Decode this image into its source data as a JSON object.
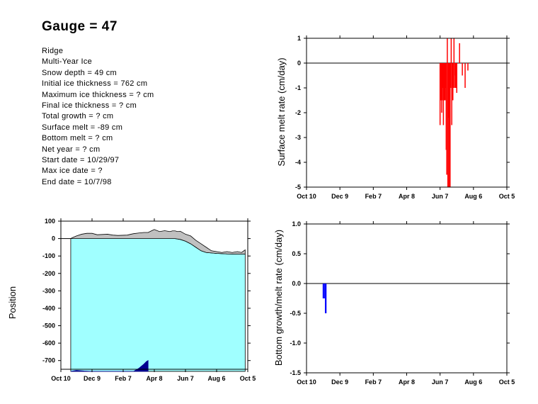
{
  "header": {
    "title": "Gauge = 47",
    "info_lines": [
      "Ridge",
      "Multi-Year Ice",
      "Snow depth = 49 cm",
      "Initial ice thickness = 762 cm",
      "Maximum ice thickness = ? cm",
      "Final ice thickness = ? cm",
      "Total growth = ? cm",
      "Surface melt = -89 cm",
      "Bottom melt = ? cm",
      "Net year = ? cm",
      "Start date = 10/29/97",
      "Max ice date = ?",
      "End date = 10/7/98"
    ]
  },
  "chart_data": [
    {
      "id": "position",
      "type": "area",
      "xlabel": "",
      "ylabel": "Position",
      "x_ticks": [
        "Oct 10",
        "Dec 9",
        "Feb 7",
        "Apr 8",
        "Jun 7",
        "Aug 6",
        "Oct 5"
      ],
      "y_ticks": [
        "100",
        "0",
        "-100",
        "-200",
        "-300",
        "-400",
        "-500",
        "-600",
        "-700"
      ],
      "xlim": [
        0,
        360
      ],
      "ylim": [
        -750,
        100
      ],
      "colors": {
        "snow": "#c0c0c0",
        "ice": "#a0ffff",
        "growth": "#000090"
      },
      "series": [
        {
          "role": "snow surface",
          "x": [
            19,
            22,
            30,
            40,
            50,
            60,
            70,
            90,
            100,
            110,
            128,
            135,
            140,
            150,
            160,
            168,
            175,
            180,
            190,
            200,
            210,
            215,
            220,
            225,
            230,
            240,
            250,
            260,
            270,
            280,
            290,
            300,
            310,
            320,
            330,
            340,
            348,
            355
          ],
          "values": [
            0,
            5,
            15,
            25,
            30,
            30,
            22,
            25,
            20,
            18,
            20,
            25,
            28,
            32,
            35,
            35,
            45,
            52,
            40,
            45,
            40,
            44,
            44,
            40,
            42,
            25,
            15,
            -10,
            -30,
            -50,
            -70,
            -75,
            -80,
            -75,
            -80,
            -75,
            -80,
            -65
          ]
        },
        {
          "role": "ice surface",
          "x": [
            19,
            180,
            220,
            230,
            240,
            250,
            260,
            270,
            280,
            300,
            320,
            340,
            355
          ],
          "values": [
            0,
            0,
            0,
            -5,
            -15,
            -30,
            -50,
            -70,
            -80,
            -85,
            -88,
            -89,
            -89
          ]
        },
        {
          "role": "ice bottom",
          "x": [
            19,
            355
          ],
          "values": [
            -762,
            -762
          ]
        },
        {
          "role": "bottom growth",
          "x": [
            19,
            30,
            45,
            60,
            80,
            100,
            120,
            140,
            150,
            160,
            165,
            168
          ],
          "values": [
            -762,
            -756,
            -760,
            -762,
            -762,
            -762,
            -762,
            -762,
            -745,
            -720,
            -705,
            -700
          ]
        }
      ]
    },
    {
      "id": "surface-melt",
      "type": "bar",
      "xlabel": "",
      "ylabel": "Surface melt rate (cm/day)",
      "x_ticks": [
        "Oct 10",
        "Dec 9",
        "Feb 7",
        "Apr 8",
        "Jun 7",
        "Aug 6",
        "Oct 5"
      ],
      "y_ticks": [
        "1",
        "0",
        "-1",
        "-2",
        "-3",
        "-4",
        "-5"
      ],
      "xlim": [
        0,
        360
      ],
      "ylim": [
        -5,
        1
      ],
      "color": "#ff0000",
      "x": [
        240,
        241,
        242,
        243,
        244,
        245,
        246,
        247,
        248,
        249,
        250,
        251,
        252,
        253,
        254,
        255,
        256,
        257,
        258,
        259,
        260,
        261,
        262,
        263,
        264,
        265,
        266,
        267,
        268,
        269,
        270,
        275,
        280,
        285,
        290
      ],
      "values": [
        -2.5,
        -1.5,
        -1.5,
        -2,
        -1.5,
        -1,
        -2.5,
        -1.5,
        -1.5,
        -1.5,
        -1,
        -3.5,
        -4.5,
        1,
        -5,
        -2.2,
        -5,
        -3.5,
        -5,
        -1,
        1,
        -2.5,
        -1.5,
        -1.5,
        -1,
        1,
        -1,
        -0.5,
        -1,
        -1,
        -1.2,
        0.8,
        -0.5,
        -1,
        -0.3
      ]
    },
    {
      "id": "bottom-melt",
      "type": "bar",
      "xlabel": "",
      "ylabel": "Bottom growth/melt rate (cm/day)",
      "x_ticks": [
        "Oct 10",
        "Dec 9",
        "Feb 7",
        "Apr 8",
        "Jun 7",
        "Aug 6",
        "Oct 5"
      ],
      "y_ticks": [
        "1.0",
        "0.5",
        "0.0",
        "-0.5",
        "-1.0",
        "-1.5"
      ],
      "xlim": [
        0,
        360
      ],
      "ylim": [
        -1.5,
        1
      ],
      "color": "#0000ff",
      "x": [
        30,
        32,
        34,
        35
      ],
      "values": [
        -0.25,
        -0.25,
        -0.5,
        -0.5
      ]
    }
  ]
}
